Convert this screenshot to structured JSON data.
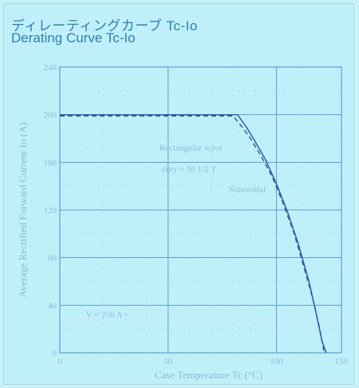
{
  "header": {
    "title_jp": "ディレーティングカーブ Tc-Io",
    "title_en": "Derating Curve Tc-Io"
  },
  "colors": {
    "grid": "#5f9fd0",
    "minor_grid": "#9ccbe8",
    "curve": "#2a5fa6",
    "text": "#8fb9d6"
  },
  "chart_data": {
    "type": "line",
    "title": "Derating Curve Tc-Io",
    "xlabel": "Case Temperature  Tc (°C)",
    "ylabel": "Average Rectified Forward Current  Io (A)",
    "xlim": [
      0,
      130
    ],
    "ylim": [
      0,
      240
    ],
    "x_ticks": [
      0,
      50,
      100,
      150
    ],
    "x_tick_labels": [
      "0",
      "50",
      "100",
      "150"
    ],
    "y_ticks": [
      0,
      40,
      80,
      120,
      160,
      200,
      240
    ],
    "y_tick_labels": [
      "0",
      "40",
      "80",
      "120",
      "160",
      "200",
      "240"
    ],
    "grid": true,
    "series": [
      {
        "name": "Rectangular wave",
        "style": "solid",
        "points": [
          [
            0,
            200
          ],
          [
            82,
            200
          ],
          [
            86,
            190
          ],
          [
            90,
            178
          ],
          [
            95,
            162
          ],
          [
            100,
            142
          ],
          [
            105,
            119
          ],
          [
            110,
            92
          ],
          [
            115,
            60
          ],
          [
            118,
            36
          ],
          [
            121,
            10
          ],
          [
            123,
            0
          ]
        ]
      },
      {
        "name": "Sinusoidal",
        "style": "dashed",
        "points": [
          [
            0,
            199
          ],
          [
            80,
            199
          ],
          [
            84,
            190
          ],
          [
            88,
            180
          ],
          [
            93,
            165
          ],
          [
            98,
            148
          ],
          [
            103,
            126
          ],
          [
            108,
            101
          ],
          [
            113,
            70
          ],
          [
            117,
            44
          ],
          [
            120,
            20
          ],
          [
            122,
            0
          ]
        ]
      }
    ],
    "annotations": [
      {
        "text": "Rectangular wave",
        "x": 46,
        "y": 170
      },
      {
        "text": "duty = 50  1/2 T",
        "x": 47,
        "y": 152
      },
      {
        "text": "Sinusoidal",
        "x": 78,
        "y": 135
      },
      {
        "text": "V = 250 A ~",
        "x": 12,
        "y": 30
      }
    ]
  }
}
